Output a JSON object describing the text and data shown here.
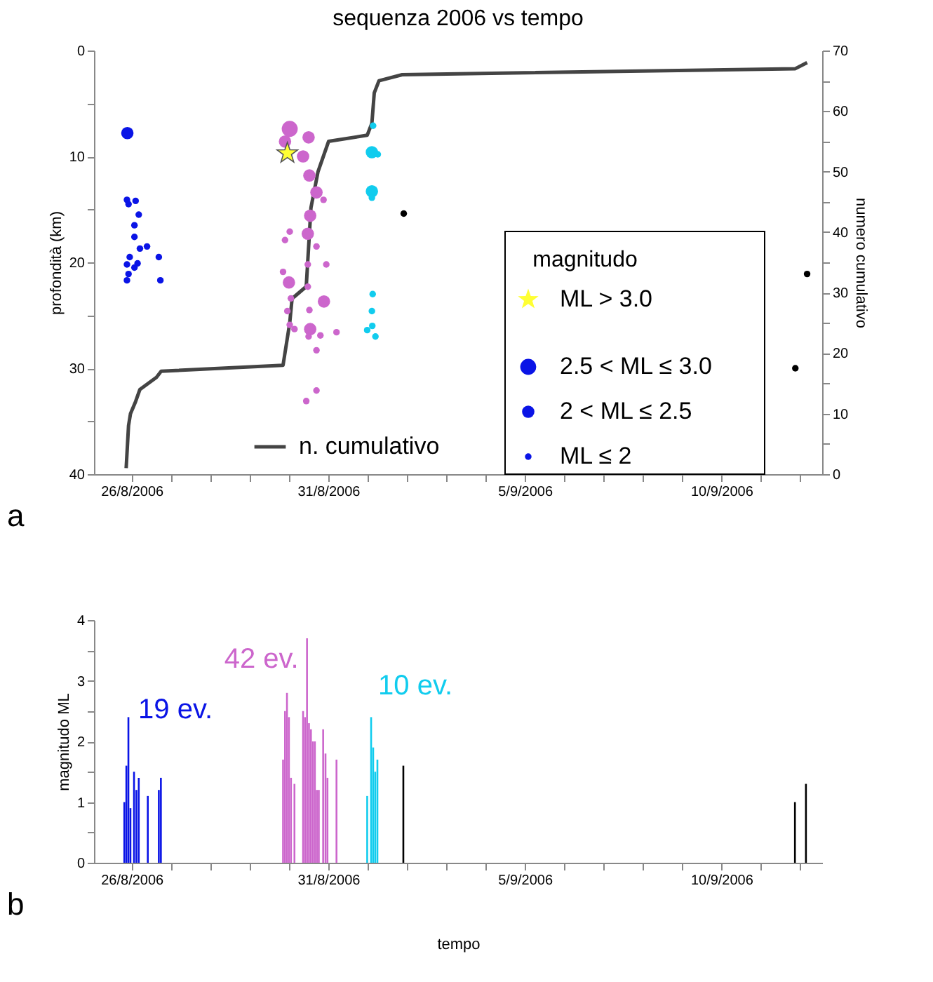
{
  "chart_data": [
    {
      "type": "scatter",
      "title": "sequenza 2006 vs tempo",
      "ylabel": "profondità (km)",
      "y2label": "numero cumulativo",
      "legend_title": "magnitudo",
      "legend": "bottom",
      "marker": "circle",
      "xlim": [
        "2006-08-25T01:00",
        "2006-09-12T13:30"
      ],
      "xticks": [
        {
          "value": "2006-08-26T00:00",
          "label": "26/8/2006"
        },
        {
          "value": "2006-08-27T00:00",
          "label": null
        },
        {
          "value": "2006-08-28T00:00",
          "label": null
        },
        {
          "value": "2006-08-29T00:00",
          "label": null
        },
        {
          "value": "2006-08-30T00:00",
          "label": null
        },
        {
          "value": "2006-08-31T00:00",
          "label": "31/8/2006"
        },
        {
          "value": "2006-09-01T00:00",
          "label": null
        },
        {
          "value": "2006-09-02T00:00",
          "label": null
        },
        {
          "value": "2006-09-03T00:00",
          "label": null
        },
        {
          "value": "2006-09-04T00:00",
          "label": null
        },
        {
          "value": "2006-09-05T00:00",
          "label": "5/9/2006"
        },
        {
          "value": "2006-09-06T00:00",
          "label": null
        },
        {
          "value": "2006-09-07T00:00",
          "label": null
        },
        {
          "value": "2006-09-08T00:00",
          "label": null
        },
        {
          "value": "2006-09-09T00:00",
          "label": null
        },
        {
          "value": "2006-09-10T00:00",
          "label": "10/9/2006"
        },
        {
          "value": "2006-09-11T00:00",
          "label": null
        },
        {
          "value": "2006-09-12T00:00",
          "label": null
        }
      ],
      "ylim": [
        40,
        0
      ],
      "yticks": [
        0,
        {
          "value": 5,
          "label": null
        },
        10,
        {
          "value": 15,
          "label": null
        },
        20,
        {
          "value": 25,
          "label": null
        },
        30,
        {
          "value": 35,
          "label": null
        },
        40
      ],
      "y2lim": [
        0,
        70
      ],
      "y2ticks": [
        0,
        {
          "value": 5,
          "label": null
        },
        10,
        {
          "value": 15,
          "label": null
        },
        20,
        {
          "value": 25,
          "label": null
        },
        30,
        {
          "value": 35,
          "label": null
        },
        40,
        {
          "value": 45,
          "label": null
        },
        50,
        {
          "value": 55,
          "label": null
        },
        60,
        {
          "value": 65,
          "label": null
        },
        70
      ],
      "size_legend": [
        {
          "value": 1,
          "label": "2.5 < ML ≤ 3.0"
        },
        {
          "value": 0.6,
          "label": "2 < ML ≤ 2.5"
        },
        {
          "value": 0.17,
          "label": "ML ≤ 2"
        }
      ],
      "annotations": [
        "a"
      ],
      "series": [
        {
          "color": "#0a14e6",
          "x": [
            "2006-08-25T21:22",
            "2006-08-25T21:07",
            "2006-08-25T22:05",
            "2006-08-26T02:24",
            "2006-08-26T04:19",
            "2006-08-26T01:41",
            "2006-08-26T01:41",
            "2006-08-26T05:02",
            "2006-08-26T09:22",
            "2006-08-25T22:48",
            "2006-08-26T16:34",
            "2006-08-25T21:07",
            "2006-08-26T03:36",
            "2006-08-26T01:41",
            "2006-08-25T22:05",
            "2006-08-25T21:07",
            "2006-08-26T17:31"
          ],
          "values": [
            7.8,
            14.1,
            14.5,
            14.2,
            15.5,
            16.5,
            17.6,
            18.7,
            18.5,
            19.5,
            19.5,
            20.2,
            20.1,
            20.5,
            21.1,
            21.7,
            21.7
          ],
          "sizes": [
            0.6,
            0.17,
            0.17,
            0.17,
            0.17,
            0.17,
            0.17,
            0.17,
            0.17,
            0.17,
            0.17,
            0.17,
            0.17,
            0.17,
            0.17,
            0.17,
            0.17
          ]
        },
        {
          "color": "#cc66cc",
          "x": [
            "2006-08-30T00:29",
            "2006-08-29T21:36",
            "2006-08-30T12:00",
            "2006-08-30T08:38",
            "2006-08-30T12:29",
            "2006-08-30T16:48",
            "2006-08-30T21:07",
            "2006-08-30T12:58",
            "2006-08-30T11:31",
            "2006-08-30T00:29",
            "2006-08-29T21:36",
            "2006-08-30T16:48",
            "2006-08-30T11:31",
            "2006-08-30T22:48",
            "2006-08-29T20:24",
            "2006-08-30T00:00",
            "2006-08-30T11:31",
            "2006-08-30T01:12",
            "2006-08-30T21:22",
            "2006-08-29T23:02",
            "2006-08-30T12:29",
            "2006-08-30T00:29",
            "2006-08-30T03:22",
            "2006-08-30T12:58",
            "2006-08-30T12:00",
            "2006-08-30T19:12",
            "2006-08-31T05:02",
            "2006-08-30T16:48",
            "2006-08-30T16:48",
            "2006-08-30T10:34"
          ],
          "values": [
            7.4,
            8.6,
            8.2,
            10.0,
            11.8,
            13.4,
            14.1,
            15.6,
            17.3,
            17.1,
            17.9,
            18.5,
            20.2,
            20.2,
            20.9,
            21.9,
            22.3,
            23.4,
            23.7,
            24.6,
            24.5,
            25.9,
            26.3,
            26.3,
            27.0,
            26.9,
            26.6,
            28.3,
            32.1,
            33.1
          ],
          "sizes": [
            1,
            0.6,
            0.6,
            0.6,
            0.6,
            0.6,
            0.17,
            0.6,
            0.6,
            0.17,
            0.17,
            0.17,
            0.17,
            0.17,
            0.17,
            0.6,
            0.17,
            0.17,
            0.6,
            0.17,
            0.17,
            0.17,
            0.17,
            0.6,
            0.17,
            0.17,
            0.17,
            0.17,
            0.17,
            0.17
          ]
        },
        {
          "color": "#11ccee",
          "x": [
            "2006-09-01T03:22",
            "2006-09-01T02:38",
            "2006-09-01T06:14",
            "2006-09-01T02:38",
            "2006-09-01T02:38",
            "2006-09-01T03:07",
            "2006-09-01T02:38",
            "2006-09-01T02:53",
            "2006-08-31T23:46",
            "2006-09-01T04:48"
          ],
          "values": [
            7.1,
            9.6,
            9.8,
            13.3,
            13.9,
            23.0,
            24.6,
            26.0,
            26.4,
            27.0
          ],
          "sizes": [
            0.17,
            0.6,
            0.17,
            0.6,
            0.17,
            0.17,
            0.17,
            0.17,
            0.17,
            0.17
          ]
        },
        {
          "color": "#000000",
          "x": [
            "2006-09-01T22:05",
            "2006-09-12T04:19",
            "2006-09-11T21:07"
          ],
          "values": [
            15.4,
            21.1,
            30.0
          ],
          "sizes": [
            0.17,
            0.17,
            0.17
          ]
        },
        {
          "name": "ML > 3.0",
          "color": "#ffff33",
          "marker": "star",
          "x": [
            "2006-08-29T23:02"
          ],
          "values": [
            9.7
          ]
        },
        {
          "name": "n. cumulativo",
          "type": "line",
          "axis": "y2",
          "color": "#444444",
          "marker": "none",
          "x": [
            "2006-08-25T20:38",
            "2006-08-25T22:05",
            "2006-08-25T23:17",
            "2006-08-26T02:24",
            "2006-08-26T05:02",
            "2006-08-26T15:07",
            "2006-08-26T18:00",
            "2006-08-29T20:24",
            "2006-08-30T00:29",
            "2006-08-30T01:55",
            "2006-08-30T10:34",
            "2006-08-30T13:26",
            "2006-08-30T17:46",
            "2006-08-31T00:14",
            "2006-08-31T23:46",
            "2006-09-01T02:38",
            "2006-09-01T04:05",
            "2006-09-01T06:58",
            "2006-09-01T21:07",
            "2006-09-11T21:07",
            "2006-09-12T04:19"
          ],
          "values": [
            1,
            8,
            10,
            12,
            14,
            16,
            17,
            18,
            25,
            29,
            31,
            44,
            50,
            55,
            56,
            58,
            63,
            65,
            66,
            67,
            68
          ]
        }
      ]
    },
    {
      "type": "bar",
      "xlabel": "tempo",
      "ylabel": "magnitudo ML",
      "xlim": [
        "2006-08-25T01:00",
        "2006-09-12T13:30"
      ],
      "xticks": [
        {
          "value": "2006-08-26T00:00",
          "label": "26/8/2006"
        },
        {
          "value": "2006-08-27T00:00",
          "label": null
        },
        {
          "value": "2006-08-28T00:00",
          "label": null
        },
        {
          "value": "2006-08-29T00:00",
          "label": null
        },
        {
          "value": "2006-08-30T00:00",
          "label": null
        },
        {
          "value": "2006-08-31T00:00",
          "label": "31/8/2006"
        },
        {
          "value": "2006-09-01T00:00",
          "label": null
        },
        {
          "value": "2006-09-02T00:00",
          "label": null
        },
        {
          "value": "2006-09-03T00:00",
          "label": null
        },
        {
          "value": "2006-09-04T00:00",
          "label": null
        },
        {
          "value": "2006-09-05T00:00",
          "label": "5/9/2006"
        },
        {
          "value": "2006-09-06T00:00",
          "label": null
        },
        {
          "value": "2006-09-07T00:00",
          "label": null
        },
        {
          "value": "2006-09-08T00:00",
          "label": null
        },
        {
          "value": "2006-09-09T00:00",
          "label": null
        },
        {
          "value": "2006-09-10T00:00",
          "label": "10/9/2006"
        },
        {
          "value": "2006-09-11T00:00",
          "label": null
        },
        {
          "value": "2006-09-12T00:00",
          "label": null
        }
      ],
      "ylim": [
        0,
        4
      ],
      "yticks": [
        0,
        {
          "value": 0.5,
          "label": null
        },
        1,
        {
          "value": 1.5,
          "label": null
        },
        2,
        {
          "value": 2.5,
          "label": null
        },
        3,
        {
          "value": 3.5,
          "label": null
        },
        4
      ],
      "annotations": [
        "b"
      ],
      "series": [
        {
          "name": "19 ev.",
          "color": "#0a14e6",
          "x": [
            "2006-08-25T19:30",
            "2006-08-25T20:45",
            "2006-08-25T22:00",
            "2006-08-25T23:15",
            "2006-08-26T01:26",
            "2006-08-26T02:53",
            "2006-08-26T04:19",
            "2006-08-26T09:50",
            "2006-08-26T16:34",
            "2006-08-26T17:50"
          ],
          "values": [
            1.0,
            1.6,
            2.4,
            0.9,
            1.5,
            1.2,
            1.4,
            1.1,
            1.2,
            1.4
          ]
        },
        {
          "name": "42 ev.",
          "color": "#cc66cc",
          "x": [
            "2006-08-29T20:24",
            "2006-08-29T21:36",
            "2006-08-29T22:48",
            "2006-08-30T00:00",
            "2006-08-30T01:15",
            "2006-08-30T03:22",
            "2006-08-30T08:38",
            "2006-08-30T09:50",
            "2006-08-30T11:02",
            "2006-08-30T12:14",
            "2006-08-30T13:26",
            "2006-08-30T14:38",
            "2006-08-30T15:50",
            "2006-08-30T17:02",
            "2006-08-30T18:14",
            "2006-08-30T20:53",
            "2006-08-30T22:19",
            "2006-08-30T23:31",
            "2006-08-31T05:02"
          ],
          "values": [
            1.7,
            2.5,
            2.8,
            2.4,
            1.4,
            1.3,
            2.5,
            2.4,
            3.7,
            2.3,
            2.2,
            2.0,
            2.0,
            1.2,
            1.2,
            2.2,
            1.8,
            1.4,
            1.7
          ]
        },
        {
          "name": "10 ev.",
          "color": "#11ccee",
          "x": [
            "2006-08-31T23:46",
            "2006-09-01T02:10",
            "2006-09-01T03:25",
            "2006-09-01T04:40",
            "2006-09-01T06:00"
          ],
          "values": [
            1.1,
            2.4,
            1.9,
            1.5,
            1.7
          ]
        },
        {
          "color": "#000000",
          "x": [
            "2006-09-01T21:50",
            "2006-09-11T20:53",
            "2006-09-12T03:36"
          ],
          "values": [
            1.6,
            1.0,
            1.3
          ]
        }
      ]
    }
  ]
}
